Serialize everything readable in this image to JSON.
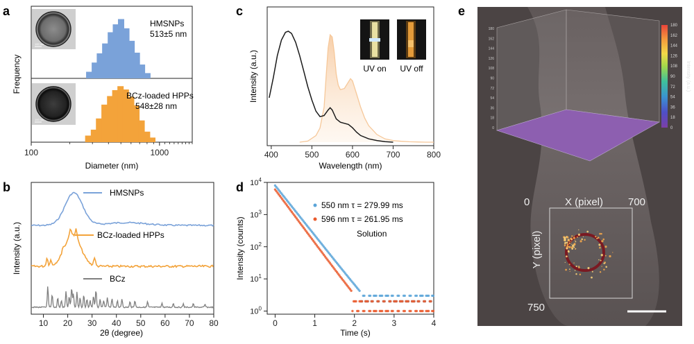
{
  "panels": {
    "a": "a",
    "b": "b",
    "c": "c",
    "d": "d",
    "e": "e"
  },
  "chart_data": [
    {
      "id": "a",
      "type": "bar",
      "title": "",
      "xlabel": "Diameter (nm)",
      "ylabel": "Frequency",
      "xscale": "log",
      "xlim": [
        100,
        1800
      ],
      "xticks": [
        100,
        1000
      ],
      "xtick_labels": [
        "100",
        "1000"
      ],
      "series": [
        {
          "name": "HMSNPs",
          "label_line1": "HMSNPs",
          "label_line2": "513±5 nm",
          "color": "#7aa2d9",
          "bins": [
            285,
            315,
            345,
            380,
            420,
            460,
            505,
            555,
            610,
            670,
            735,
            810
          ],
          "values": [
            0.1,
            0.24,
            0.38,
            0.53,
            0.7,
            0.82,
            0.9,
            0.76,
            0.57,
            0.39,
            0.21,
            0.08
          ]
        },
        {
          "name": "BCz-loaded HPPs",
          "label_line1": "BCz-loaded HPPs",
          "label_line2": "548±28 nm",
          "color": "#f3a33a",
          "bins": [
            280,
            310,
            340,
            375,
            415,
            455,
            500,
            550,
            605,
            665,
            730,
            805,
            885
          ],
          "values": [
            0.1,
            0.19,
            0.36,
            0.57,
            0.7,
            0.79,
            0.85,
            0.8,
            0.69,
            0.56,
            0.33,
            0.16,
            0.07
          ]
        }
      ],
      "inset_scale": "100 nm"
    },
    {
      "id": "b",
      "type": "line",
      "xlabel": "2θ (degree)",
      "ylabel": "Intensity (a.u.)",
      "xlim": [
        5,
        80
      ],
      "xticks": [
        10,
        20,
        30,
        40,
        50,
        60,
        70,
        80
      ],
      "series": [
        {
          "name": "HMSNPs",
          "color": "#7aa2d9",
          "description": "broad amorphous hump centred near 22.5°"
        },
        {
          "name": "BCz-loaded HPPs",
          "color": "#f3a33a",
          "description": "broad hump near 22° with sharp peaks at 11.5°, 13°, 21°, 23.5°, 31°"
        },
        {
          "name": "BCz",
          "color": "#7f7f7f",
          "peaks_2theta": [
            11.8,
            13.6,
            15.9,
            17.4,
            19.3,
            20.6,
            21.6,
            22.3,
            23.8,
            25.1,
            26.6,
            27.9,
            29.2,
            30.6,
            31.6,
            33.3,
            34.8,
            36.3,
            38.2,
            40.4,
            42.3,
            45.6,
            47.6,
            52.8,
            58.7,
            63.4,
            67.5,
            71.6,
            76.4
          ]
        }
      ]
    },
    {
      "id": "c",
      "type": "line",
      "xlabel": "Wavelength (nm)",
      "ylabel": "Intensity (a.u.)",
      "xlim": [
        390,
        800
      ],
      "xticks": [
        400,
        500,
        600,
        700,
        800
      ],
      "series": [
        {
          "name": "fluorescence",
          "color": "#1a1a1a",
          "x": [
            395,
            405,
            415,
            425,
            435,
            442,
            450,
            460,
            470,
            480,
            490,
            500,
            510,
            520,
            530,
            540,
            545,
            550,
            555,
            560,
            570,
            580,
            590,
            600,
            610,
            620,
            640,
            660,
            680,
            700
          ],
          "y": [
            0.4,
            0.58,
            0.78,
            0.92,
            0.99,
            1.0,
            0.98,
            0.9,
            0.78,
            0.64,
            0.5,
            0.38,
            0.28,
            0.23,
            0.24,
            0.29,
            0.31,
            0.29,
            0.25,
            0.21,
            0.18,
            0.17,
            0.16,
            0.13,
            0.09,
            0.06,
            0.03,
            0.015,
            0.005,
            0.0
          ]
        },
        {
          "name": "phosphorescence",
          "color": "#f6c89a",
          "fill": true,
          "x": [
            470,
            490,
            510,
            520,
            530,
            535,
            540,
            545,
            550,
            555,
            560,
            565,
            570,
            580,
            590,
            595,
            600,
            610,
            620,
            630,
            640,
            650,
            660,
            680,
            700,
            720,
            740,
            760,
            780,
            800
          ],
          "y": [
            0.0,
            0.01,
            0.06,
            0.13,
            0.32,
            0.6,
            0.86,
            0.98,
            0.96,
            0.82,
            0.62,
            0.52,
            0.48,
            0.49,
            0.55,
            0.58,
            0.56,
            0.44,
            0.32,
            0.22,
            0.15,
            0.11,
            0.07,
            0.03,
            0.015,
            0.008,
            0.004,
            0.002,
            0.0,
            0.0
          ]
        }
      ],
      "insets": [
        {
          "label": "UV on"
        },
        {
          "label": "UV off"
        }
      ]
    },
    {
      "id": "d",
      "type": "scatter",
      "xlabel": "Time (s)",
      "ylabel": "Intensity (counts)",
      "xlim": [
        -0.2,
        4
      ],
      "yscale": "log",
      "ylim": [
        0.8,
        10000
      ],
      "xticks": [
        0,
        1,
        2,
        3,
        4
      ],
      "yticks": [
        1,
        10,
        100,
        1000,
        10000
      ],
      "series": [
        {
          "name": "550 nm",
          "legend": "550 nm τ = 279.99 ms",
          "color": "#5ba4d8",
          "tau_ms": 279.99,
          "initial_counts": 8000
        },
        {
          "name": "596 nm",
          "legend": "596 nm τ = 261.95 ms",
          "color": "#ea5a2d",
          "tau_ms": 261.95,
          "initial_counts": 6000
        }
      ],
      "annotation": "Solution"
    },
    {
      "id": "e",
      "type": "heatmap",
      "zlabel": "Intensity (a.u.)",
      "colorbar_ticks": [
        0,
        18,
        36,
        54,
        72,
        90,
        108,
        126,
        144,
        162,
        180
      ],
      "zaxis_ticks": [
        0,
        18,
        36,
        54,
        72,
        90,
        108,
        126,
        144,
        162,
        180
      ],
      "roi": {
        "x_label": "X (pixel)",
        "y_label": "Y (pixel)",
        "x_start": "0",
        "x_end": "700",
        "y_end": "750"
      }
    }
  ]
}
